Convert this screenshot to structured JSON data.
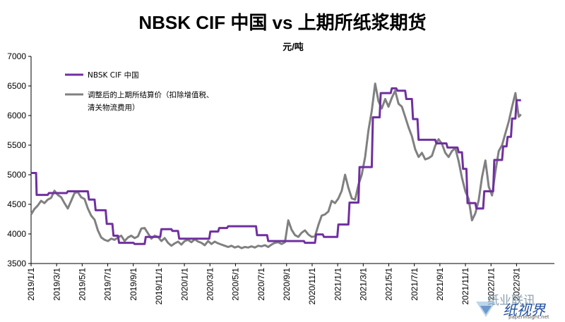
{
  "chart_data": {
    "type": "line",
    "title": "NBSK CIF 中国 vs 上期所纸浆期货",
    "unit": "元/吨",
    "ylim": [
      3500,
      7000
    ],
    "yticks": [
      3500,
      4000,
      4500,
      5000,
      5500,
      6000,
      6500,
      7000
    ],
    "xlim": [
      0,
      47
    ],
    "x_tick_labels": [
      "2019/1/1",
      "2019/3/1",
      "2019/5/1",
      "2019/7/1",
      "2019/9/1",
      "2019/11/1",
      "2020/1/1",
      "2020/3/1",
      "2020/5/1",
      "2020/7/1",
      "2020/9/1",
      "2020/11/1",
      "2021/1/1",
      "2021/3/1",
      "2021/5/1",
      "2021/7/1",
      "2021/9/1",
      "2021/11/1",
      "2022/1/1",
      "2022/3/1"
    ],
    "grid": false,
    "legend_position": "top-left",
    "series": [
      {
        "name": "NBSK CIF 中国",
        "color": "#7030a0",
        "points": [
          [
            0.0,
            5030
          ],
          [
            0.45,
            5030
          ],
          [
            0.5,
            4660
          ],
          [
            1.5,
            4660
          ],
          [
            1.6,
            4690
          ],
          [
            3.2,
            4690
          ],
          [
            3.3,
            4720
          ],
          [
            5.1,
            4720
          ],
          [
            5.2,
            4580
          ],
          [
            5.7,
            4580
          ],
          [
            5.8,
            4400
          ],
          [
            6.7,
            4400
          ],
          [
            6.8,
            4170
          ],
          [
            7.3,
            4170
          ],
          [
            7.4,
            3970
          ],
          [
            7.8,
            3970
          ],
          [
            7.9,
            3850
          ],
          [
            9.2,
            3850
          ],
          [
            9.3,
            3830
          ],
          [
            10.2,
            3830
          ],
          [
            10.3,
            3950
          ],
          [
            11.6,
            3950
          ],
          [
            11.7,
            4080
          ],
          [
            12.6,
            4080
          ],
          [
            12.7,
            4050
          ],
          [
            13.2,
            4050
          ],
          [
            13.3,
            3920
          ],
          [
            16.0,
            3920
          ],
          [
            16.1,
            4040
          ],
          [
            16.8,
            4040
          ],
          [
            16.9,
            4100
          ],
          [
            17.6,
            4100
          ],
          [
            17.7,
            4130
          ],
          [
            20.2,
            4130
          ],
          [
            20.3,
            3980
          ],
          [
            21.2,
            3980
          ],
          [
            21.3,
            3880
          ],
          [
            24.5,
            3880
          ],
          [
            24.6,
            3850
          ],
          [
            25.5,
            3850
          ],
          [
            25.6,
            3990
          ],
          [
            26.2,
            3990
          ],
          [
            26.3,
            3950
          ],
          [
            27.5,
            3950
          ],
          [
            27.6,
            4160
          ],
          [
            28.5,
            4160
          ],
          [
            28.6,
            4530
          ],
          [
            29.4,
            4530
          ],
          [
            29.5,
            5130
          ],
          [
            30.6,
            5130
          ],
          [
            30.7,
            5970
          ],
          [
            31.3,
            5970
          ],
          [
            31.4,
            6380
          ],
          [
            32.3,
            6380
          ],
          [
            32.4,
            6460
          ],
          [
            32.8,
            6460
          ],
          [
            32.9,
            6420
          ],
          [
            33.6,
            6420
          ],
          [
            33.7,
            6280
          ],
          [
            34.2,
            6280
          ],
          [
            34.3,
            5940
          ],
          [
            34.7,
            5940
          ],
          [
            34.8,
            5590
          ],
          [
            36.3,
            5590
          ],
          [
            36.4,
            5530
          ],
          [
            37.3,
            5530
          ],
          [
            37.4,
            5460
          ],
          [
            38.3,
            5460
          ],
          [
            38.4,
            5380
          ],
          [
            38.7,
            5380
          ],
          [
            38.8,
            5100
          ],
          [
            39.1,
            5100
          ],
          [
            39.2,
            4520
          ],
          [
            39.9,
            4520
          ],
          [
            40.0,
            4430
          ],
          [
            40.6,
            4430
          ],
          [
            40.7,
            4720
          ],
          [
            41.5,
            4720
          ],
          [
            41.6,
            5250
          ],
          [
            42.3,
            5250
          ],
          [
            42.4,
            5480
          ],
          [
            42.7,
            5480
          ],
          [
            42.8,
            5640
          ],
          [
            43.1,
            5640
          ],
          [
            43.2,
            5950
          ],
          [
            43.5,
            5950
          ],
          [
            43.6,
            6260
          ],
          [
            44.0,
            6260
          ]
        ]
      },
      {
        "name": "调整后的上期所结算价（扣除增值税、清关物流费用）",
        "color": "#808080",
        "points": [
          [
            0.0,
            4330
          ],
          [
            0.3,
            4420
          ],
          [
            0.6,
            4480
          ],
          [
            0.9,
            4560
          ],
          [
            1.2,
            4520
          ],
          [
            1.5,
            4580
          ],
          [
            1.8,
            4610
          ],
          [
            2.1,
            4730
          ],
          [
            2.4,
            4660
          ],
          [
            2.7,
            4620
          ],
          [
            3.0,
            4520
          ],
          [
            3.3,
            4430
          ],
          [
            3.6,
            4560
          ],
          [
            3.9,
            4690
          ],
          [
            4.2,
            4710
          ],
          [
            4.5,
            4620
          ],
          [
            4.8,
            4590
          ],
          [
            5.1,
            4430
          ],
          [
            5.4,
            4310
          ],
          [
            5.7,
            4240
          ],
          [
            6.0,
            4060
          ],
          [
            6.3,
            3940
          ],
          [
            6.6,
            3900
          ],
          [
            6.9,
            3880
          ],
          [
            7.2,
            3920
          ],
          [
            7.5,
            3900
          ],
          [
            7.8,
            3940
          ],
          [
            8.1,
            3970
          ],
          [
            8.4,
            3880
          ],
          [
            8.7,
            3940
          ],
          [
            9.0,
            3970
          ],
          [
            9.3,
            3930
          ],
          [
            9.6,
            3960
          ],
          [
            9.9,
            4090
          ],
          [
            10.2,
            4100
          ],
          [
            10.5,
            4010
          ],
          [
            10.8,
            3920
          ],
          [
            11.1,
            3970
          ],
          [
            11.4,
            3950
          ],
          [
            11.7,
            3880
          ],
          [
            12.0,
            3930
          ],
          [
            12.3,
            3850
          ],
          [
            12.6,
            3800
          ],
          [
            12.9,
            3840
          ],
          [
            13.2,
            3870
          ],
          [
            13.5,
            3820
          ],
          [
            13.8,
            3880
          ],
          [
            14.1,
            3900
          ],
          [
            14.4,
            3860
          ],
          [
            14.7,
            3910
          ],
          [
            15.0,
            3870
          ],
          [
            15.3,
            3850
          ],
          [
            15.6,
            3810
          ],
          [
            15.9,
            3880
          ],
          [
            16.2,
            3830
          ],
          [
            16.5,
            3870
          ],
          [
            16.8,
            3840
          ],
          [
            17.1,
            3820
          ],
          [
            17.4,
            3800
          ],
          [
            17.7,
            3780
          ],
          [
            18.0,
            3800
          ],
          [
            18.3,
            3770
          ],
          [
            18.6,
            3790
          ],
          [
            18.9,
            3760
          ],
          [
            19.2,
            3780
          ],
          [
            19.5,
            3770
          ],
          [
            19.8,
            3790
          ],
          [
            20.1,
            3770
          ],
          [
            20.4,
            3800
          ],
          [
            20.7,
            3790
          ],
          [
            21.0,
            3810
          ],
          [
            21.3,
            3780
          ],
          [
            21.6,
            3820
          ],
          [
            21.9,
            3850
          ],
          [
            22.2,
            3860
          ],
          [
            22.5,
            3830
          ],
          [
            22.8,
            3860
          ],
          [
            23.1,
            4230
          ],
          [
            23.4,
            4070
          ],
          [
            23.7,
            3980
          ],
          [
            24.0,
            3950
          ],
          [
            24.3,
            4020
          ],
          [
            24.6,
            4060
          ],
          [
            24.9,
            3990
          ],
          [
            25.2,
            3950
          ],
          [
            25.5,
            3960
          ],
          [
            25.8,
            4150
          ],
          [
            26.1,
            4310
          ],
          [
            26.4,
            4330
          ],
          [
            26.7,
            4380
          ],
          [
            27.0,
            4560
          ],
          [
            27.3,
            4520
          ],
          [
            27.6,
            4600
          ],
          [
            27.9,
            4730
          ],
          [
            28.2,
            5000
          ],
          [
            28.5,
            4780
          ],
          [
            28.8,
            4600
          ],
          [
            29.1,
            4580
          ],
          [
            29.4,
            4830
          ],
          [
            29.7,
            5000
          ],
          [
            30.0,
            5300
          ],
          [
            30.3,
            5750
          ],
          [
            30.6,
            6080
          ],
          [
            30.9,
            6540
          ],
          [
            31.2,
            6240
          ],
          [
            31.5,
            6120
          ],
          [
            31.8,
            6280
          ],
          [
            32.1,
            6150
          ],
          [
            32.4,
            6300
          ],
          [
            32.7,
            6420
          ],
          [
            33.0,
            6200
          ],
          [
            33.3,
            6150
          ],
          [
            33.6,
            5980
          ],
          [
            33.9,
            5800
          ],
          [
            34.2,
            5650
          ],
          [
            34.5,
            5430
          ],
          [
            34.8,
            5300
          ],
          [
            35.1,
            5370
          ],
          [
            35.4,
            5260
          ],
          [
            35.7,
            5280
          ],
          [
            36.0,
            5320
          ],
          [
            36.3,
            5490
          ],
          [
            36.6,
            5600
          ],
          [
            36.9,
            5520
          ],
          [
            37.2,
            5370
          ],
          [
            37.5,
            5300
          ],
          [
            37.8,
            5400
          ],
          [
            38.1,
            5450
          ],
          [
            38.4,
            5230
          ],
          [
            38.7,
            4950
          ],
          [
            39.0,
            4720
          ],
          [
            39.3,
            4590
          ],
          [
            39.6,
            4230
          ],
          [
            39.9,
            4350
          ],
          [
            40.2,
            4570
          ],
          [
            40.5,
            4960
          ],
          [
            40.8,
            5240
          ],
          [
            41.1,
            4800
          ],
          [
            41.4,
            4650
          ],
          [
            41.7,
            5050
          ],
          [
            42.0,
            5400
          ],
          [
            42.3,
            5500
          ],
          [
            42.6,
            5700
          ],
          [
            42.9,
            5900
          ],
          [
            43.2,
            6150
          ],
          [
            43.5,
            6380
          ],
          [
            43.8,
            5980
          ],
          [
            44.0,
            6020
          ]
        ]
      }
    ]
  },
  "watermark": {
    "line1": "纸业联讯",
    "line2": "纸视界",
    "url": "paperinsight.net"
  }
}
